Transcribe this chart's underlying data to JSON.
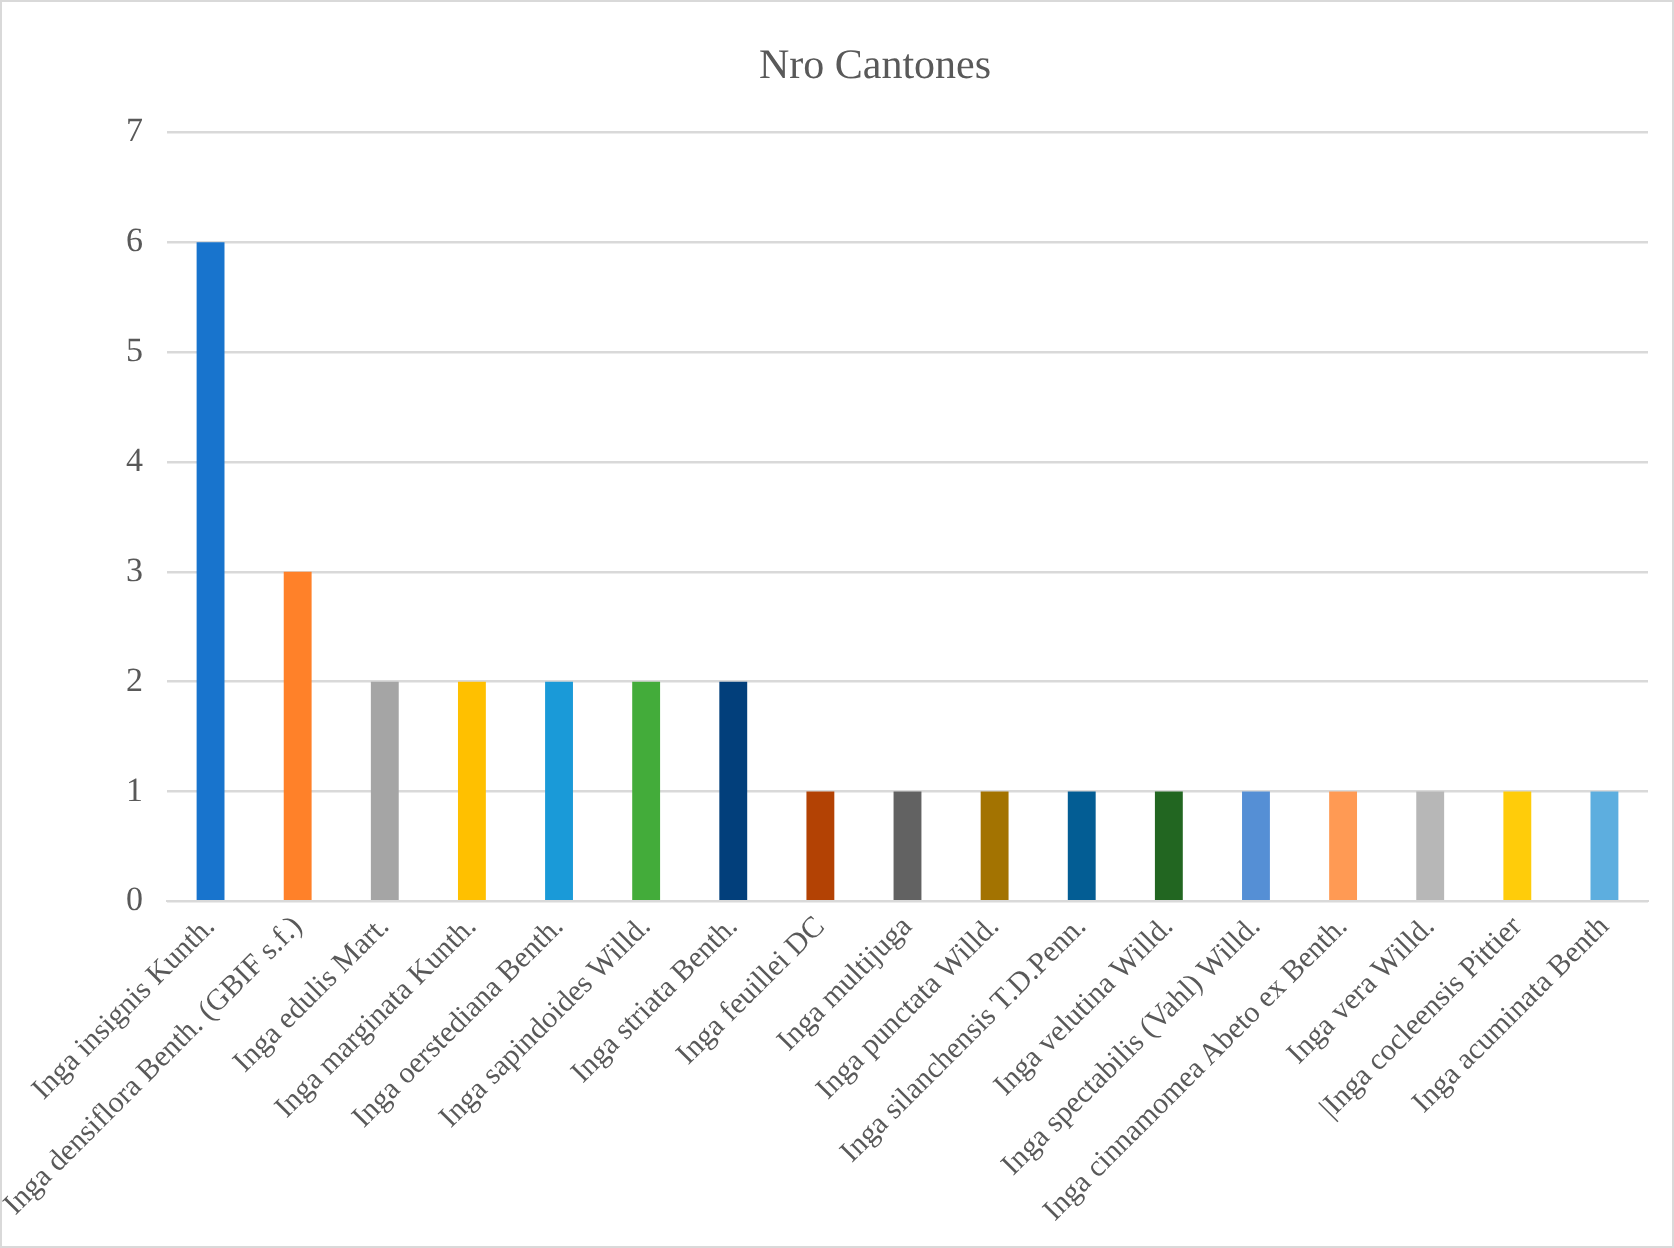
{
  "chart_data": {
    "type": "bar",
    "title": "Nro Cantones",
    "categories": [
      "Inga insignis Kunth.",
      "Inga densiflora Benth. (GBIF s.f.)",
      "Inga edulis Mart.",
      "Inga marginata Kunth.",
      "Inga oerstediana Benth.",
      "Inga sapindoides Willd.",
      "Inga striata Benth.",
      "Inga feuillei DC",
      "Inga multijuga",
      "Inga punctata Willd.",
      "Inga silanchensis T.D.Penn.",
      "Inga velutina Willd.",
      "Inga spectabilis (Vahl) Willd.",
      "Inga cinnamomea Abeto ex Benth.",
      "Inga vera Willd.",
      "|Inga cocleensis Pittier",
      "Inga acuminata Benth"
    ],
    "values": [
      6,
      3,
      2,
      2,
      2,
      2,
      2,
      1,
      1,
      1,
      1,
      1,
      1,
      1,
      1,
      1,
      1
    ],
    "colors": [
      "#1874cd",
      "#ff8129",
      "#a5a5a5",
      "#ffc000",
      "#1a9ad8",
      "#43ac3a",
      "#023f7b",
      "#b34204",
      "#626262",
      "#a37301",
      "#035d94",
      "#226621",
      "#558fd5",
      "#ff9a54",
      "#b7b7b7",
      "#ffcc0a",
      "#5daedf"
    ],
    "ylim": [
      0,
      7
    ],
    "yticks": [
      0,
      1,
      2,
      3,
      4,
      5,
      6,
      7
    ],
    "grid": "y"
  }
}
